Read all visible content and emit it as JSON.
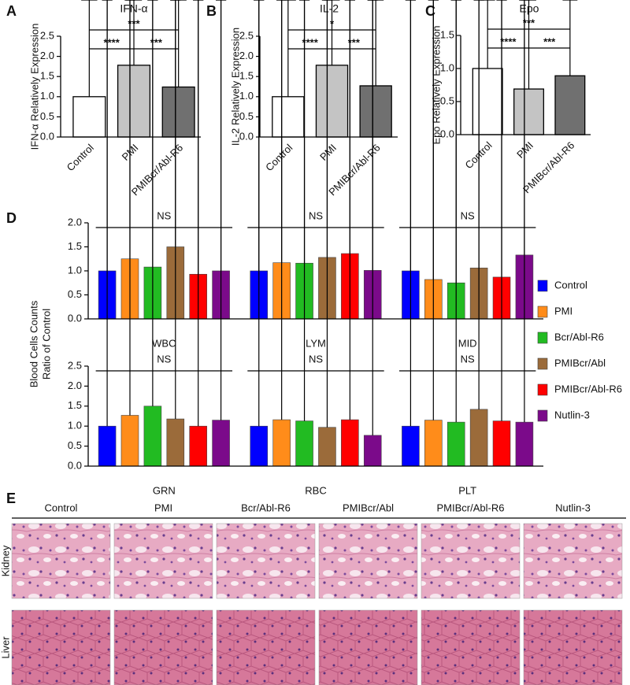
{
  "chart_data": [
    {
      "type": "bar",
      "panel": "A",
      "title": "IFN-α",
      "ylabel": "IFN-α Relatively Expression",
      "categories": [
        "Control",
        "PMI",
        "PMIBcr/Abl-R6"
      ],
      "values": [
        1.0,
        1.78,
        1.24
      ],
      "errors": [
        0.1,
        0.37,
        0.07
      ],
      "colors": [
        "#ffffff",
        "#c4c4c4",
        "#707070"
      ],
      "ylim": [
        0,
        2.5
      ],
      "yticks": [
        {
          "value": 0,
          "label": "0.0"
        },
        0.5,
        {
          "value": 1,
          "label": "1.0"
        },
        1.5,
        {
          "value": 2,
          "label": "2.0"
        },
        2.5
      ],
      "annotations": [
        {
          "text": "***",
          "from": "Control",
          "to": "PMIBcr/Abl-R6"
        },
        {
          "text": "****",
          "from": "Control",
          "to": "PMI"
        },
        {
          "text": "***",
          "from": "PMI",
          "to": "PMIBcr/Abl-R6"
        }
      ]
    },
    {
      "type": "bar",
      "panel": "B",
      "title": "IL-2",
      "ylabel": "IL-2 Relatively Expression",
      "categories": [
        "Control",
        "PMI",
        "PMIBcr/Abl-R6"
      ],
      "values": [
        1.0,
        1.78,
        1.27
      ],
      "errors": [
        0.2,
        0.33,
        0.2
      ],
      "colors": [
        "#ffffff",
        "#c4c4c4",
        "#707070"
      ],
      "ylim": [
        0,
        2.5
      ],
      "yticks": [
        {
          "value": 0,
          "label": "0.0"
        },
        0.5,
        {
          "value": 1,
          "label": "1.0"
        },
        1.5,
        {
          "value": 2,
          "label": "2.0"
        },
        2.5
      ],
      "annotations": [
        {
          "text": "*",
          "from": "Control",
          "to": "PMIBcr/Abl-R6"
        },
        {
          "text": "****",
          "from": "Control",
          "to": "PMI"
        },
        {
          "text": "***",
          "from": "PMI",
          "to": "PMIBcr/Abl-R6"
        }
      ]
    },
    {
      "type": "bar",
      "panel": "C",
      "title": "Epo",
      "ylabel": "Epo Relatively Expression",
      "categories": [
        "Control",
        "PMI",
        "PMIBcr/Abl-R6"
      ],
      "values": [
        1.0,
        0.69,
        0.89
      ],
      "errors": [
        0.05,
        0.13,
        0.04
      ],
      "colors": [
        "#ffffff",
        "#c4c4c4",
        "#707070"
      ],
      "ylim": [
        0,
        1.5
      ],
      "yticks": [
        {
          "value": 0,
          "label": "0.0"
        },
        0.5,
        {
          "value": 1,
          "label": "1.0"
        },
        1.5
      ],
      "annotations": [
        {
          "text": "***",
          "from": "Control",
          "to": "PMIBcr/Abl-R6"
        },
        {
          "text": "****",
          "from": "Control",
          "to": "PMI"
        },
        {
          "text": "***",
          "from": "PMI",
          "to": "PMIBcr/Abl-R6"
        }
      ]
    },
    {
      "type": "grouped_bar",
      "panel": "D",
      "ylabel": [
        "Blood Cells Counts",
        "Ratio of Control"
      ],
      "categories": [
        "WBC",
        "LYM",
        "MID"
      ],
      "group_annotations": [
        "NS",
        "NS",
        "NS"
      ],
      "legend": "right",
      "ylim": [
        0,
        2
      ],
      "yticks": [
        {
          "value": 0,
          "label": "0.0"
        },
        0.5,
        {
          "value": 1,
          "label": "1.0"
        },
        1.5,
        {
          "value": 2,
          "label": "2.0"
        }
      ],
      "series": [
        {
          "name": "Control",
          "color": "#0000ff",
          "values": [
            1.0,
            1.0,
            1.0
          ],
          "errors": [
            0.2,
            0.52,
            0.4
          ]
        },
        {
          "name": "PMI",
          "color": "#ff8c1a",
          "values": [
            1.25,
            1.17,
            0.82
          ],
          "errors": [
            0.07,
            0.42,
            0.12
          ]
        },
        {
          "name": "Bcr/Abl-R6",
          "color": "#22bb22",
          "values": [
            1.08,
            1.16,
            0.75
          ],
          "errors": [
            0.18,
            0.32,
            0.25
          ]
        },
        {
          "name": "PMIBcr/Abl",
          "color": "#9b6b3a",
          "values": [
            1.5,
            1.28,
            1.06
          ],
          "errors": [
            0.42,
            0.3,
            0.42
          ]
        },
        {
          "name": "PMIBcr/Abl-R6",
          "color": "#ff0000",
          "values": [
            0.93,
            1.36,
            0.87
          ],
          "errors": [
            0.2,
            0.25,
            0.27
          ]
        },
        {
          "name": "Nutlin-3",
          "color": "#7b0a8a",
          "values": [
            1.0,
            1.01,
            1.33
          ],
          "errors": [
            0.17,
            0.47,
            0.52
          ]
        }
      ]
    },
    {
      "type": "grouped_bar",
      "categories": [
        "GRN",
        "RBC",
        "PLT"
      ],
      "group_annotations": [
        "NS",
        "NS",
        "NS"
      ],
      "ylim": [
        0,
        2.5
      ],
      "yticks": [
        {
          "value": 0,
          "label": "0.0"
        },
        0.5,
        {
          "value": 1,
          "label": "1.0"
        },
        1.5,
        {
          "value": 2,
          "label": "2.0"
        },
        2.5
      ],
      "series": [
        {
          "color": "#0000ff",
          "values": [
            1.0,
            1.0,
            1.0
          ],
          "errors": [
            0.3,
            0.15,
            0.25
          ]
        },
        {
          "color": "#ff8c1a",
          "values": [
            1.27,
            1.16,
            1.15
          ],
          "errors": [
            0.85,
            0.08,
            0.13
          ]
        },
        {
          "color": "#22bb22",
          "values": [
            1.5,
            1.13,
            1.1
          ],
          "errors": [
            0.32,
            0.07,
            0.08
          ]
        },
        {
          "color": "#9b6b3a",
          "values": [
            1.18,
            0.97,
            1.42
          ],
          "errors": [
            0.85,
            0.25,
            0.28
          ]
        },
        {
          "color": "#ff0000",
          "values": [
            1.0,
            1.16,
            1.13
          ],
          "errors": [
            0.17,
            0.08,
            0.25
          ]
        },
        {
          "color": "#7b0a8a",
          "values": [
            1.15,
            0.77,
            1.1
          ],
          "errors": [
            0.27,
            0.38,
            0.38
          ]
        }
      ]
    }
  ],
  "histology": {
    "panel": "E",
    "columns": [
      "Control",
      "PMI",
      "Bcr/Abl-R6",
      "PMIBcr/Abl",
      "PMIBcr/Abl-R6",
      "Nutlin-3"
    ],
    "rows": [
      "Kidney",
      "Liver"
    ]
  }
}
